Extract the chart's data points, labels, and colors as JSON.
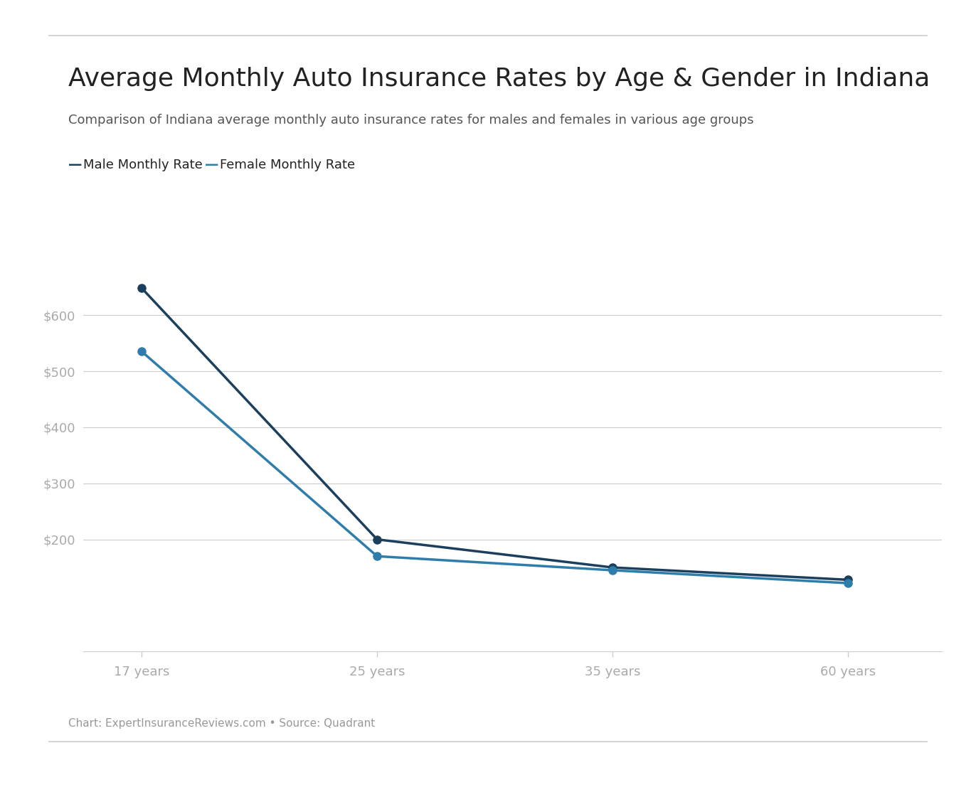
{
  "title": "Average Monthly Auto Insurance Rates by Age & Gender in Indiana",
  "subtitle": "Comparison of Indiana average monthly auto insurance rates for males and females in various age groups",
  "source_text": "Chart: ExpertInsuranceReviews.com • Source: Quadrant",
  "age_labels": [
    "17 years",
    "25 years",
    "35 years",
    "60 years"
  ],
  "male_rates": [
    648,
    200,
    150,
    128
  ],
  "female_rates": [
    535,
    170,
    145,
    122
  ],
  "male_color": "#1c3f5e",
  "female_color": "#2e7daa",
  "background_color": "#ffffff",
  "grid_color": "#cccccc",
  "title_color": "#222222",
  "subtitle_color": "#555555",
  "source_color": "#999999",
  "tick_color": "#aaaaaa",
  "ylim": [
    0,
    700
  ],
  "yticks": [
    200,
    300,
    400,
    500,
    600
  ],
  "legend_male": "Male Monthly Rate",
  "legend_female": "Female Monthly Rate",
  "title_fontsize": 26,
  "subtitle_fontsize": 13,
  "legend_fontsize": 13,
  "tick_fontsize": 13,
  "source_fontsize": 11
}
